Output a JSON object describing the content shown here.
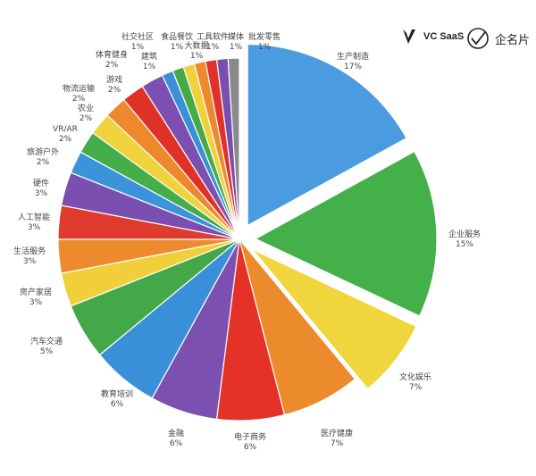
{
  "brands": {
    "left": {
      "name": "VC SaaS",
      "icon": "vc-saas-logo-icon",
      "color": "#222222"
    },
    "right": {
      "name": "企名片",
      "icon": "qimingpian-logo-icon",
      "color": "#222222"
    }
  },
  "chart_data": {
    "type": "pie",
    "title": "",
    "start": "12 o'clock, clockwise",
    "exploded": [
      "生产制造",
      "企业服务",
      "文化娱乐"
    ],
    "slices": [
      {
        "label": "生产制造",
        "pct": "17%",
        "value": 17,
        "color": "#4a9be0"
      },
      {
        "label": "企业服务",
        "pct": "15%",
        "value": 15,
        "color": "#43b04a"
      },
      {
        "label": "文化娱乐",
        "pct": "7%",
        "value": 7,
        "color": "#f0d63c"
      },
      {
        "label": "医疗健康",
        "pct": "7%",
        "value": 7,
        "color": "#ec8b2c"
      },
      {
        "label": "电子商务",
        "pct": "6%",
        "value": 6,
        "color": "#e53228"
      },
      {
        "label": "金融",
        "pct": "6%",
        "value": 6,
        "color": "#7c50b0"
      },
      {
        "label": "教育培训",
        "pct": "6%",
        "value": 6,
        "color": "#3a90d8"
      },
      {
        "label": "汽车交通",
        "pct": "5%",
        "value": 5,
        "color": "#43a848"
      },
      {
        "label": "房产家居",
        "pct": "3%",
        "value": 3,
        "color": "#f0cf3a"
      },
      {
        "label": "生活服务",
        "pct": "3%",
        "value": 3,
        "color": "#ee8a2e"
      },
      {
        "label": "人工智能",
        "pct": "3%",
        "value": 3,
        "color": "#e13a2e"
      },
      {
        "label": "硬件",
        "pct": "3%",
        "value": 3,
        "color": "#7a4fb0"
      },
      {
        "label": "旅游户外",
        "pct": "2%",
        "value": 2,
        "color": "#3b93da"
      },
      {
        "label": "VR/AR",
        "pct": "2%",
        "value": 2,
        "color": "#46ad4b"
      },
      {
        "label": "农业",
        "pct": "2%",
        "value": 2,
        "color": "#f0d33c"
      },
      {
        "label": "物流运输",
        "pct": "2%",
        "value": 2,
        "color": "#ed892c"
      },
      {
        "label": "游戏",
        "pct": "2%",
        "value": 2,
        "color": "#df3127"
      },
      {
        "label": "体育健身",
        "pct": "2%",
        "value": 2,
        "color": "#7b50b1"
      },
      {
        "label": "建筑",
        "pct": "1%",
        "value": 1,
        "color": "#3a8fd7"
      },
      {
        "label": "社交社区",
        "pct": "1%",
        "value": 1,
        "color": "#45ab49"
      },
      {
        "label": "食品餐饮",
        "pct": "1%",
        "value": 1,
        "color": "#f0d13a"
      },
      {
        "label": "大数据",
        "pct": "1%",
        "value": 1,
        "color": "#ee8a2d"
      },
      {
        "label": "工具软件",
        "pct": "1%",
        "value": 1,
        "color": "#e0312a"
      },
      {
        "label": "媒体",
        "pct": "1%",
        "value": 1,
        "color": "#7a4eaf"
      },
      {
        "label": "批发零售",
        "pct": "1%",
        "value": 1,
        "color": "#8a8a8a"
      }
    ]
  }
}
